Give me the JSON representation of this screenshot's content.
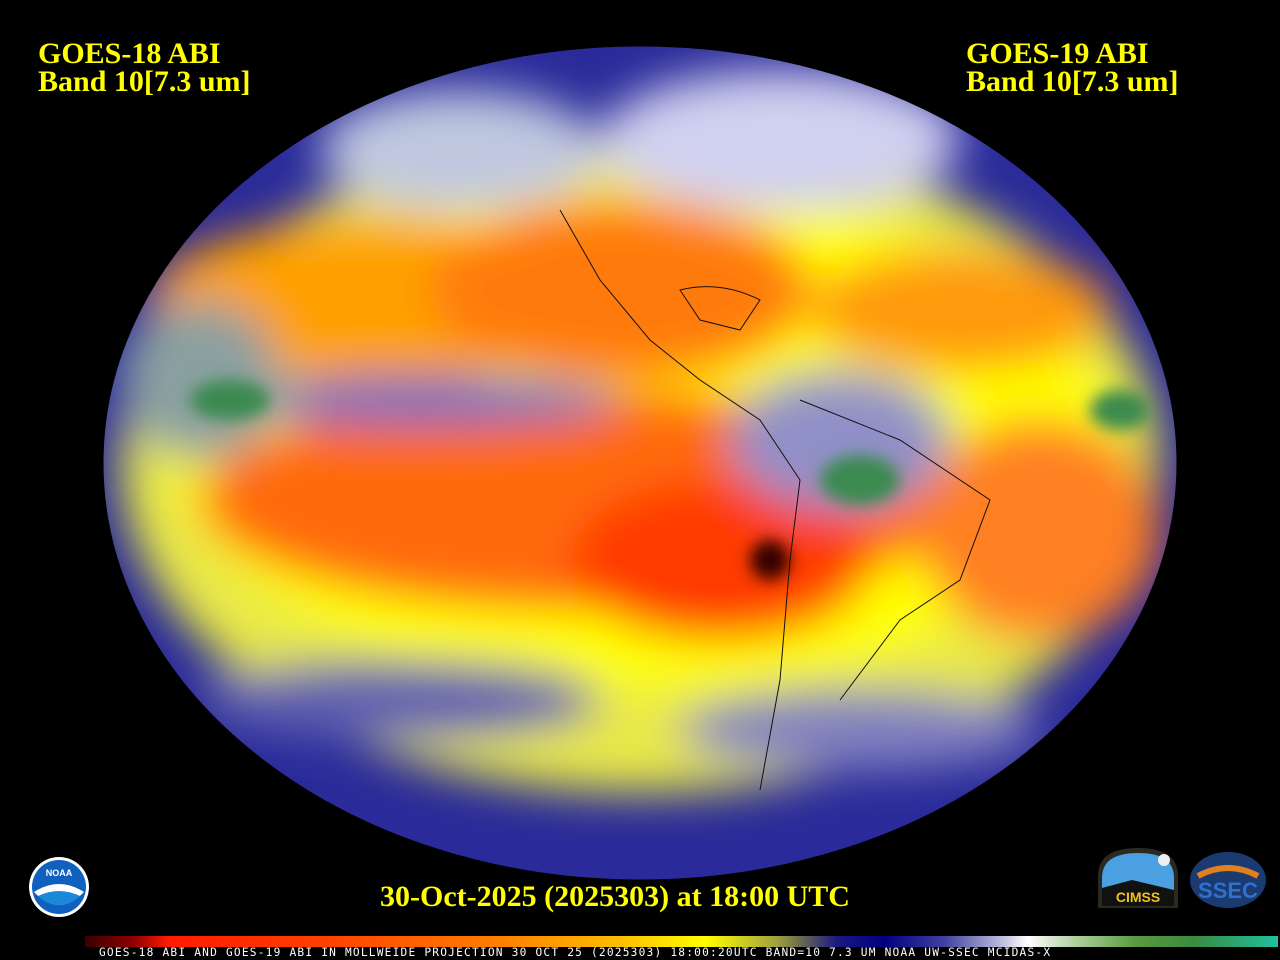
{
  "left_title": {
    "line1": "GOES-18 ABI",
    "line2": "Band 10[7.3 um]"
  },
  "right_title": {
    "line1": "GOES-19 ABI",
    "line2": "Band 10[7.3 um]"
  },
  "datetime": "30-Oct-2025 (2025303) at 18:00 UTC",
  "footer": "GOES-18 ABI AND GOES-19 ABI IN MOLLWEIDE PROJECTION 30 OCT 25 (2025303) 18:00:20UTC BAND=10 7.3 UM NOAA UW-SSEC MCIDAS-X",
  "projection": "Mollweide",
  "logos": {
    "noaa": "NOAA",
    "cimss": "CIMSS",
    "ssec": "SSEC"
  },
  "colors": {
    "title": "#ffff00",
    "background": "#000000"
  }
}
